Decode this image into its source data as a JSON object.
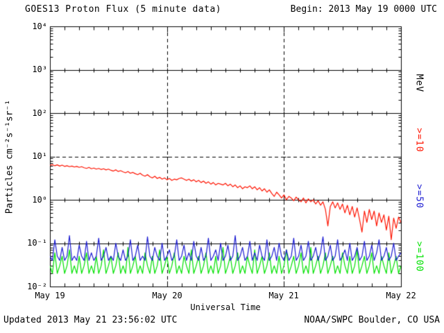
{
  "header": {
    "title": "GOES13 Proton Flux (5 minute data)",
    "begin_label": "Begin: 2013 May 19 0000 UTC"
  },
  "footer": {
    "updated": "Updated 2013 May 21 23:56:02 UTC",
    "source": "NOAA/SWPC Boulder, CO USA"
  },
  "axes": {
    "y_label": "Particles cm⁻²s⁻¹sr⁻¹",
    "x_label": "Universal Time",
    "y_ticks": [
      "10⁴",
      "10³",
      "10²",
      "10¹",
      "10⁰",
      "10⁻¹",
      "10⁻²"
    ],
    "x_ticks": [
      "May 19",
      "May 20",
      "May 21",
      "May 22"
    ],
    "right_labels": [
      {
        "text": "MeV",
        "color": "#000000"
      },
      {
        "text": ">=10",
        "color": "#fe1400"
      },
      {
        "text": ">=50",
        "color": "#1b1bd1"
      },
      {
        "text": ">=100",
        "color": "#00e100"
      }
    ]
  },
  "chart_data": {
    "type": "line",
    "title": "GOES13 Proton Flux (5 minute data)",
    "xlabel": "Universal Time",
    "ylabel": "Particles cm⁻²s⁻¹sr⁻¹",
    "y_scale": "log",
    "ylim": [
      0.01,
      10000
    ],
    "x_range_hours": [
      0,
      72
    ],
    "x_start_hours": 0,
    "x_step_hours": 0.5,
    "x_tick_hours": [
      0,
      24,
      48,
      72
    ],
    "x_tick_labels": [
      "May 19",
      "May 20",
      "May 21",
      "May 22"
    ],
    "solid_hlines": [
      1000,
      100,
      1,
      0.1
    ],
    "dashed_hlines": [
      10
    ],
    "dashed_vlines_hours": [
      24,
      48
    ],
    "grid": "partial",
    "legend_position": "right-rotated",
    "series": [
      {
        "name": ">=10 MeV",
        "color": "#fe1400",
        "values": [
          6.2,
          6.5,
          6.1,
          6.4,
          6.0,
          6.3,
          5.9,
          6.1,
          5.8,
          6.0,
          5.7,
          5.9,
          5.6,
          5.8,
          5.5,
          5.3,
          5.6,
          5.2,
          5.4,
          5.1,
          5.3,
          5.0,
          5.2,
          4.9,
          5.1,
          4.8,
          4.6,
          4.9,
          4.5,
          4.7,
          4.4,
          4.2,
          4.5,
          4.1,
          4.3,
          4.0,
          3.8,
          4.1,
          3.7,
          3.5,
          3.8,
          3.4,
          3.2,
          3.5,
          3.1,
          3.3,
          3.0,
          3.2,
          2.9,
          3.1,
          2.8,
          3.0,
          2.9,
          3.1,
          3.2,
          3.0,
          2.8,
          3.0,
          2.7,
          2.9,
          2.6,
          2.8,
          2.5,
          2.7,
          2.4,
          2.6,
          2.3,
          2.5,
          2.2,
          2.4,
          2.3,
          2.2,
          2.4,
          2.1,
          2.3,
          2.0,
          2.2,
          1.9,
          2.1,
          1.8,
          2.0,
          1.9,
          2.1,
          1.8,
          2.0,
          1.7,
          1.9,
          1.6,
          1.8,
          1.5,
          1.7,
          1.4,
          1.2,
          1.5,
          1.3,
          1.1,
          1.3,
          1.0,
          1.2,
          1.1,
          0.95,
          1.15,
          1.0,
          0.9,
          1.1,
          0.85,
          1.05,
          0.9,
          1.0,
          0.8,
          0.95,
          0.75,
          0.9,
          0.6,
          0.25,
          0.7,
          0.9,
          0.65,
          0.85,
          0.6,
          0.8,
          0.5,
          0.75,
          0.45,
          0.7,
          0.4,
          0.65,
          0.35,
          0.18,
          0.55,
          0.3,
          0.6,
          0.35,
          0.55,
          0.25,
          0.5,
          0.3,
          0.45,
          0.2,
          0.42,
          0.12,
          0.38,
          0.22,
          0.4,
          0.3
        ]
      },
      {
        "name": ">=50 MeV",
        "color": "#1b1bd1",
        "values": [
          0.05,
          0.04,
          0.12,
          0.05,
          0.04,
          0.08,
          0.04,
          0.05,
          0.15,
          0.04,
          0.05,
          0.04,
          0.09,
          0.05,
          0.04,
          0.11,
          0.04,
          0.06,
          0.04,
          0.05,
          0.13,
          0.04,
          0.05,
          0.08,
          0.04,
          0.05,
          0.04,
          0.1,
          0.05,
          0.04,
          0.07,
          0.04,
          0.05,
          0.12,
          0.04,
          0.05,
          0.09,
          0.04,
          0.05,
          0.04,
          0.14,
          0.05,
          0.04,
          0.08,
          0.05,
          0.04,
          0.1,
          0.04,
          0.05,
          0.07,
          0.04,
          0.05,
          0.12,
          0.04,
          0.05,
          0.09,
          0.04,
          0.06,
          0.04,
          0.11,
          0.05,
          0.04,
          0.08,
          0.04,
          0.05,
          0.13,
          0.04,
          0.05,
          0.07,
          0.04,
          0.1,
          0.04,
          0.05,
          0.09,
          0.04,
          0.05,
          0.15,
          0.04,
          0.05,
          0.08,
          0.04,
          0.05,
          0.11,
          0.04,
          0.06,
          0.04,
          0.09,
          0.05,
          0.04,
          0.12,
          0.04,
          0.05,
          0.08,
          0.04,
          0.1,
          0.05,
          0.04,
          0.07,
          0.04,
          0.05,
          0.13,
          0.04,
          0.05,
          0.09,
          0.04,
          0.05,
          0.11,
          0.04,
          0.05,
          0.08,
          0.04,
          0.06,
          0.14,
          0.04,
          0.05,
          0.09,
          0.04,
          0.05,
          0.12,
          0.04,
          0.05,
          0.07,
          0.04,
          0.1,
          0.04,
          0.05,
          0.08,
          0.04,
          0.05,
          0.11,
          0.04,
          0.05,
          0.09,
          0.04,
          0.06,
          0.12,
          0.04,
          0.05,
          0.08,
          0.04,
          0.05,
          0.1,
          0.04,
          0.05,
          0.06
        ]
      },
      {
        "name": ">=100 MeV",
        "color": "#00e100",
        "values": [
          0.03,
          0.02,
          0.06,
          0.02,
          0.03,
          0.05,
          0.02,
          0.03,
          0.07,
          0.02,
          0.03,
          0.02,
          0.05,
          0.02,
          0.03,
          0.06,
          0.02,
          0.03,
          0.02,
          0.05,
          0.02,
          0.03,
          0.07,
          0.02,
          0.03,
          0.05,
          0.02,
          0.03,
          0.06,
          0.02,
          0.03,
          0.02,
          0.08,
          0.02,
          0.03,
          0.05,
          0.02,
          0.03,
          0.02,
          0.06,
          0.03,
          0.02,
          0.05,
          0.02,
          0.03,
          0.07,
          0.02,
          0.03,
          0.05,
          0.02,
          0.03,
          0.06,
          0.02,
          0.03,
          0.02,
          0.05,
          0.03,
          0.02,
          0.07,
          0.02,
          0.03,
          0.05,
          0.02,
          0.03,
          0.06,
          0.02,
          0.03,
          0.02,
          0.05,
          0.02,
          0.03,
          0.08,
          0.02,
          0.03,
          0.05,
          0.02,
          0.03,
          0.06,
          0.02,
          0.03,
          0.02,
          0.05,
          0.03,
          0.02,
          0.07,
          0.02,
          0.03,
          0.05,
          0.02,
          0.03,
          0.06,
          0.02,
          0.03,
          0.02,
          0.05,
          0.02,
          0.03,
          0.07,
          0.02,
          0.03,
          0.05,
          0.02,
          0.03,
          0.06,
          0.02,
          0.03,
          0.02,
          0.08,
          0.02,
          0.03,
          0.05,
          0.02,
          0.03,
          0.06,
          0.02,
          0.03,
          0.05,
          0.02,
          0.03,
          0.02,
          0.06,
          0.03,
          0.02,
          0.05,
          0.02,
          0.03,
          0.07,
          0.02,
          0.03,
          0.05,
          0.02,
          0.03,
          0.06,
          0.02,
          0.03,
          0.02,
          0.05,
          0.03,
          0.02,
          0.06,
          0.02,
          0.03,
          0.05,
          0.02,
          0.03
        ]
      }
    ]
  }
}
